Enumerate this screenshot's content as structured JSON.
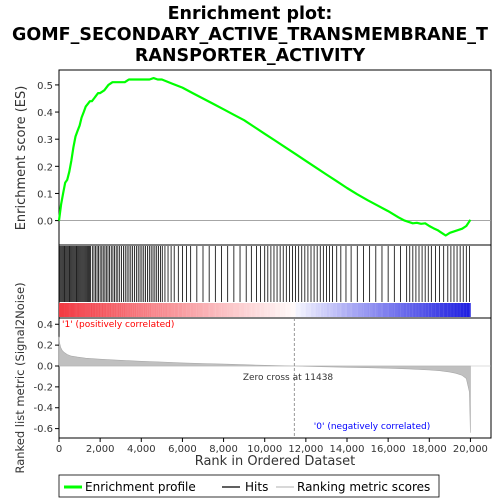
{
  "title_lines": [
    "Enrichment plot:",
    "GOMF_SECONDARY_ACTIVE_TRANSMEMBRANE_T",
    "RANSPORTER_ACTIVITY"
  ],
  "colors": {
    "es_line": "#00ff00",
    "hits": "#000000",
    "metric_fill": "#c0c0c0",
    "positive_label": "#ff0000",
    "negative_label": "#0000ff",
    "zero_line": "#808080"
  },
  "chart_data": {
    "type": "line",
    "title": "Enrichment plot: GOMF_SECONDARY_ACTIVE_TRANSMEMBRANE_TRANSPORTER_ACTIVITY",
    "xlabel": "Rank in Ordered Dataset",
    "xlim": [
      0,
      21000
    ],
    "x_ticks": [
      0,
      2000,
      4000,
      6000,
      8000,
      10000,
      12000,
      14000,
      16000,
      18000,
      20000
    ],
    "x_tick_labels": [
      "0",
      "2,000",
      "4,000",
      "6,000",
      "8,000",
      "10,000",
      "12,000",
      "14,000",
      "16,000",
      "18,000",
      "20,000"
    ],
    "es_panel": {
      "ylabel": "Enrichment score (ES)",
      "ylim": [
        -0.09,
        0.555
      ],
      "y_ticks": [
        0.0,
        0.1,
        0.2,
        0.3,
        0.4,
        0.5
      ],
      "y_tick_labels": [
        "0.0",
        "0.1",
        "0.2",
        "0.3",
        "0.4",
        "0.5"
      ],
      "series": [
        {
          "name": "Enrichment profile",
          "x": [
            0,
            100,
            200,
            300,
            400,
            500,
            600,
            700,
            800,
            900,
            1000,
            1100,
            1200,
            1300,
            1400,
            1500,
            1600,
            1700,
            1800,
            1900,
            2000,
            2200,
            2400,
            2600,
            2800,
            3000,
            3200,
            3400,
            3600,
            3800,
            4000,
            4200,
            4400,
            4600,
            4800,
            5000,
            5500,
            6000,
            6500,
            7000,
            7500,
            8000,
            8500,
            9000,
            9500,
            10000,
            10500,
            11000,
            11500,
            12000,
            12500,
            13000,
            13500,
            14000,
            14500,
            15000,
            15500,
            16000,
            16500,
            16800,
            17000,
            17200,
            17400,
            17600,
            17800,
            18000,
            18200,
            18400,
            18600,
            18800,
            19000,
            19200,
            19400,
            19600,
            19800,
            20000
          ],
          "y": [
            0.0,
            0.06,
            0.1,
            0.14,
            0.15,
            0.18,
            0.22,
            0.27,
            0.31,
            0.33,
            0.35,
            0.38,
            0.4,
            0.42,
            0.43,
            0.44,
            0.44,
            0.45,
            0.46,
            0.47,
            0.47,
            0.48,
            0.5,
            0.51,
            0.51,
            0.51,
            0.51,
            0.52,
            0.52,
            0.52,
            0.52,
            0.52,
            0.52,
            0.525,
            0.52,
            0.52,
            0.505,
            0.49,
            0.47,
            0.45,
            0.43,
            0.41,
            0.39,
            0.37,
            0.345,
            0.32,
            0.295,
            0.27,
            0.245,
            0.22,
            0.195,
            0.17,
            0.145,
            0.12,
            0.097,
            0.075,
            0.055,
            0.035,
            0.012,
            0.0,
            -0.005,
            -0.01,
            -0.008,
            -0.012,
            -0.01,
            -0.02,
            -0.028,
            -0.035,
            -0.045,
            -0.055,
            -0.045,
            -0.04,
            -0.035,
            -0.03,
            -0.02,
            0.003
          ]
        }
      ]
    },
    "hits_panel": {
      "hit_ranks": [
        20,
        60,
        110,
        160,
        210,
        260,
        300,
        350,
        400,
        450,
        500,
        540,
        590,
        640,
        690,
        740,
        790,
        840,
        880,
        930,
        980,
        1030,
        1080,
        1130,
        1180,
        1230,
        1280,
        1330,
        1380,
        1430,
        1480,
        1530,
        1620,
        1700,
        1780,
        1850,
        1920,
        2000,
        2080,
        2150,
        2230,
        2300,
        2380,
        2460,
        2540,
        2620,
        2700,
        2780,
        2860,
        2950,
        3040,
        3130,
        3220,
        3310,
        3400,
        3490,
        3580,
        3670,
        3760,
        3850,
        3940,
        4030,
        4120,
        4210,
        4300,
        4390,
        4480,
        4570,
        4660,
        4750,
        4840,
        4930,
        5020,
        5150,
        5300,
        5450,
        5600,
        5800,
        6000,
        6200,
        6400,
        6700,
        7000,
        7300,
        7600,
        7900,
        8200,
        8500,
        8800,
        9100,
        9350,
        9600,
        9800,
        10000,
        10150,
        10300,
        10450,
        10600,
        10750,
        10900,
        11050,
        11200,
        11350,
        11500,
        11650,
        11800,
        11950,
        12100,
        12250,
        12400,
        12550,
        12700,
        12850,
        13000,
        13150,
        13300,
        13500,
        13700,
        13950,
        14200,
        14500,
        14800,
        15100,
        15400,
        15700,
        16000,
        16300,
        16600,
        16900,
        17050,
        17200,
        17350,
        17500,
        17650,
        17800,
        17950,
        18100,
        18300,
        18500,
        18700,
        18900,
        19050,
        19200,
        19350,
        19500,
        19650,
        19800,
        19950
      ]
    },
    "metric_panel": {
      "ylabel": "Ranked list metric (Signal2Noise)",
      "ylim": [
        -0.69,
        0.46
      ],
      "y_ticks": [
        -0.6,
        -0.4,
        -0.2,
        0.0,
        0.2,
        0.4
      ],
      "y_tick_labels": [
        "-0.6",
        "-0.4",
        "-0.2",
        "0.0",
        "0.2",
        "0.4"
      ],
      "x": [
        0,
        30,
        80,
        150,
        250,
        400,
        600,
        900,
        1300,
        2000,
        3000,
        4000,
        5000,
        6000,
        7000,
        8000,
        9000,
        10000,
        11000,
        11438,
        12000,
        13000,
        14000,
        15000,
        16000,
        17000,
        18000,
        18500,
        19000,
        19300,
        19600,
        19800,
        19950,
        20000
      ],
      "values": [
        0.28,
        0.22,
        0.18,
        0.15,
        0.13,
        0.11,
        0.095,
        0.085,
        0.075,
        0.065,
        0.055,
        0.045,
        0.038,
        0.03,
        0.024,
        0.018,
        0.012,
        0.007,
        0.002,
        0.0,
        -0.003,
        -0.008,
        -0.012,
        -0.016,
        -0.021,
        -0.028,
        -0.038,
        -0.045,
        -0.058,
        -0.07,
        -0.09,
        -0.12,
        -0.25,
        -0.64
      ],
      "zero_cross_rank": 11438,
      "zero_cross_label": "Zero cross at 11438",
      "positive_label": "'1' (positively correlated)",
      "negative_label": "'0' (negatively correlated)"
    },
    "legend": {
      "placement": "bottom",
      "entries": [
        "Enrichment profile",
        "Hits",
        "Ranking metric scores"
      ]
    }
  }
}
